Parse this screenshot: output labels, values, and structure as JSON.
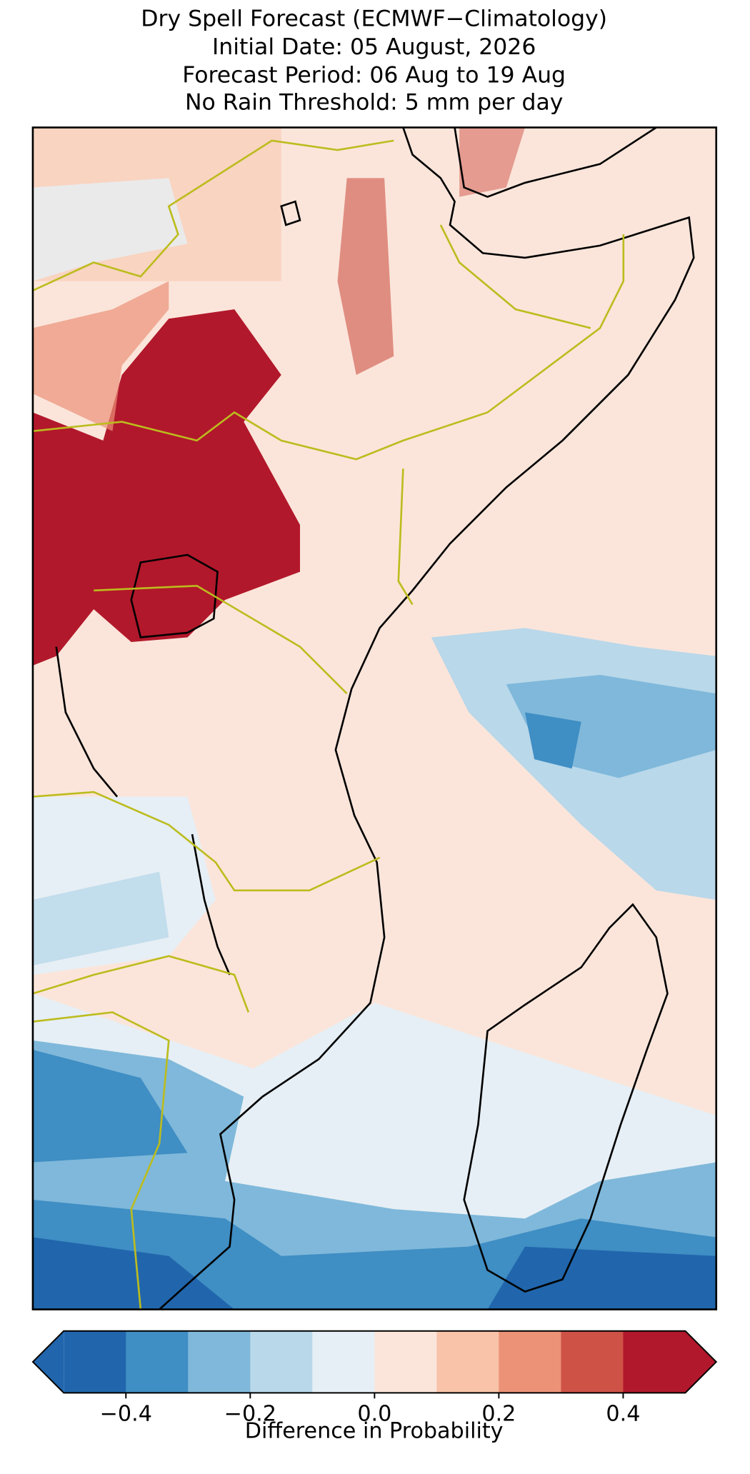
{
  "map": {
    "title": [
      "Dry Spell Forecast (ECMWF−Climatology)",
      "Initial Date: 05 August, 2026",
      "Forecast Period: 06 Aug to 19 Aug",
      "No Rain Threshold: 5 mm per day"
    ],
    "colorbar": {
      "label": "Difference in Probability",
      "levels": [
        -0.5,
        -0.4,
        -0.3,
        -0.2,
        -0.1,
        0,
        0.1,
        0.2,
        0.3,
        0.4,
        0.5
      ],
      "colors": [
        "#2166ac",
        "#3f8ec4",
        "#7fb8da",
        "#b9d8ea",
        "#e6eff5",
        "#fbe5da",
        "#f8c3a8",
        "#eb9277",
        "#cf5246",
        "#b2182b"
      ],
      "ticks": [
        {
          "value": -0.4,
          "label": "−0.4"
        },
        {
          "value": -0.2,
          "label": "−0.2"
        },
        {
          "value": 0,
          "label": "0.0"
        },
        {
          "value": 0.2,
          "label": "0.2"
        },
        {
          "value": 0.4,
          "label": "0.4"
        }
      ]
    }
  }
}
